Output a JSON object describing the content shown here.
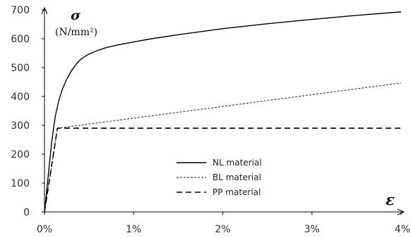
{
  "chart_data": {
    "type": "line",
    "xlim": [
      0,
      4
    ],
    "ylim": [
      0,
      700
    ],
    "x_ticks": [
      0,
      1,
      2,
      3,
      4
    ],
    "x_tick_labels": [
      "0%",
      "1%",
      "2%",
      "3%",
      "4%"
    ],
    "y_ticks": [
      0,
      100,
      200,
      300,
      400,
      500,
      600,
      700
    ],
    "y_tick_labels": [
      "0",
      "100",
      "200",
      "300",
      "400",
      "500",
      "600",
      "700"
    ],
    "y_symbol": "σ",
    "y_unit": "(N/mm²)",
    "x_symbol": "ε",
    "grid": false,
    "legend_position": "bottom-center",
    "series": [
      {
        "name": "NL material",
        "style": "solid",
        "color": "#000000",
        "x": [
          0,
          0.04,
          0.08,
          0.12,
          0.16,
          0.2,
          0.25,
          0.3,
          0.35,
          0.4,
          0.45,
          0.5,
          0.6,
          0.7,
          0.8,
          1.0,
          1.2,
          1.5,
          2.0,
          2.5,
          3.0,
          3.5,
          4.0
        ],
        "y": [
          0,
          120,
          240,
          330,
          385,
          425,
          460,
          488,
          510,
          527,
          538,
          547,
          560,
          570,
          577,
          589,
          600,
          614,
          635,
          652,
          667,
          681,
          693
        ]
      },
      {
        "name": "BL material",
        "style": "dotted",
        "color": "#444444",
        "x": [
          0,
          0.145,
          4.0
        ],
        "y": [
          0,
          290,
          447
        ]
      },
      {
        "name": "PP material",
        "style": "dashed",
        "color": "#000000",
        "x": [
          0,
          0.145,
          4.0
        ],
        "y": [
          0,
          290,
          290
        ]
      }
    ]
  }
}
